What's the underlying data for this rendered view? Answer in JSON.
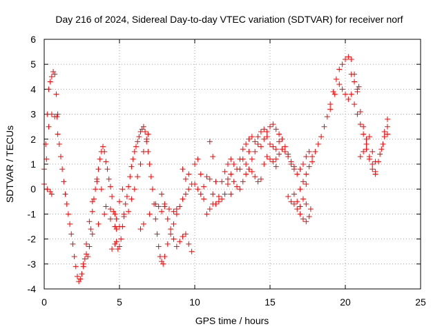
{
  "chart_data": {
    "type": "scatter",
    "title": "Day 216 of 2024, Sidereal Day-to-day VTEC variation (SDTVAR) for receiver norf",
    "xlabel": "GPS time / hours",
    "ylabel": "SDTVAR / TECUs",
    "xlim": [
      0,
      25
    ],
    "ylim": [
      -4,
      6
    ],
    "xticks": [
      "0",
      "5",
      "10",
      "15",
      "20",
      "25"
    ],
    "yticks": [
      "-4",
      "-3",
      "-2",
      "-1",
      "0",
      "1",
      "2",
      "3",
      "4",
      "5",
      "6"
    ],
    "grid": true,
    "marker": "plus",
    "color": "#ff0000",
    "series": [
      {
        "name": "SDTVAR",
        "points": [
          [
            0.0,
            0.2
          ],
          [
            0.1,
            1.8
          ],
          [
            0.2,
            3.0
          ],
          [
            0.3,
            4.0
          ],
          [
            0.4,
            4.3
          ],
          [
            0.5,
            4.5
          ],
          [
            0.6,
            4.7
          ],
          [
            0.7,
            4.6
          ],
          [
            0.8,
            3.8
          ],
          [
            0.85,
            2.9
          ],
          [
            0.9,
            2.2
          ],
          [
            1.0,
            1.8
          ],
          [
            1.1,
            1.3
          ],
          [
            1.2,
            0.8
          ],
          [
            1.3,
            0.3
          ],
          [
            1.4,
            -0.2
          ],
          [
            1.5,
            -0.6
          ],
          [
            1.6,
            -1.0
          ],
          [
            1.7,
            -1.4
          ],
          [
            1.8,
            -1.8
          ],
          [
            1.9,
            -2.2
          ],
          [
            2.0,
            -2.7
          ],
          [
            2.1,
            -3.1
          ],
          [
            2.2,
            -3.5
          ],
          [
            2.3,
            -3.7
          ],
          [
            2.4,
            -3.6
          ],
          [
            2.5,
            -3.4
          ],
          [
            2.6,
            -3.1
          ],
          [
            2.7,
            -2.8
          ],
          [
            2.8,
            -2.6
          ],
          [
            2.9,
            -2.7
          ],
          [
            3.0,
            -2.3
          ],
          [
            3.1,
            -1.6
          ],
          [
            3.2,
            -0.9
          ],
          [
            3.3,
            -0.4
          ],
          [
            3.4,
            0.0
          ],
          [
            3.5,
            0.3
          ],
          [
            3.6,
            0.8
          ],
          [
            3.7,
            1.2
          ],
          [
            3.8,
            1.5
          ],
          [
            3.9,
            1.7
          ],
          [
            4.0,
            1.5
          ],
          [
            4.1,
            1.1
          ],
          [
            4.2,
            0.8
          ],
          [
            4.3,
            0.4
          ],
          [
            4.4,
            0.1
          ],
          [
            4.5,
            -0.3
          ],
          [
            4.6,
            -0.9
          ],
          [
            4.7,
            -1.5
          ],
          [
            4.8,
            -2.1
          ],
          [
            4.9,
            -2.4
          ],
          [
            5.0,
            -2.3
          ],
          [
            5.1,
            -2.0
          ],
          [
            5.2,
            -1.5
          ],
          [
            5.3,
            -1.0
          ],
          [
            5.4,
            -0.6
          ],
          [
            5.5,
            -0.3
          ],
          [
            5.6,
            0.1
          ],
          [
            5.7,
            0.5
          ],
          [
            5.8,
            0.9
          ],
          [
            5.9,
            1.2
          ],
          [
            6.0,
            1.5
          ],
          [
            6.1,
            1.7
          ],
          [
            6.2,
            1.9
          ],
          [
            6.3,
            2.1
          ],
          [
            6.4,
            2.3
          ],
          [
            6.5,
            2.4
          ],
          [
            6.6,
            2.5
          ],
          [
            6.7,
            2.3
          ],
          [
            6.8,
            1.9
          ],
          [
            6.9,
            1.5
          ],
          [
            7.0,
            1.0
          ],
          [
            7.1,
            0.5
          ],
          [
            7.2,
            0.0
          ],
          [
            7.3,
            -0.6
          ],
          [
            7.4,
            -1.2
          ],
          [
            7.5,
            -1.8
          ],
          [
            7.6,
            -2.3
          ],
          [
            7.7,
            -2.7
          ],
          [
            7.8,
            -2.9
          ],
          [
            7.9,
            -3.0
          ],
          [
            8.0,
            -2.7
          ],
          [
            8.2,
            -2.2
          ],
          [
            8.4,
            -1.8
          ],
          [
            8.6,
            -1.4
          ],
          [
            8.8,
            -1.0
          ],
          [
            9.0,
            -0.7
          ],
          [
            9.2,
            -0.4
          ],
          [
            9.4,
            -0.2
          ],
          [
            9.6,
            0.0
          ],
          [
            9.8,
            0.2
          ],
          [
            10.0,
            0.2
          ],
          [
            10.2,
            0.0
          ],
          [
            10.4,
            -0.2
          ],
          [
            10.6,
            0.1
          ],
          [
            10.8,
            0.5
          ],
          [
            11.0,
            0.4
          ],
          [
            11.2,
            -0.2
          ],
          [
            11.4,
            -0.6
          ],
          [
            11.6,
            -0.3
          ],
          [
            11.8,
            0.3
          ],
          [
            12.0,
            0.7
          ],
          [
            12.2,
            1.0
          ],
          [
            12.4,
            1.2
          ],
          [
            12.6,
            1.0
          ],
          [
            12.8,
            0.8
          ],
          [
            13.0,
            1.2
          ],
          [
            13.2,
            1.6
          ],
          [
            13.4,
            1.8
          ],
          [
            13.6,
            2.0
          ],
          [
            13.8,
            2.1
          ],
          [
            14.0,
            1.9
          ],
          [
            14.2,
            2.1
          ],
          [
            14.4,
            2.3
          ],
          [
            14.6,
            2.4
          ],
          [
            14.8,
            2.3
          ],
          [
            15.0,
            2.5
          ],
          [
            15.2,
            2.6
          ],
          [
            15.4,
            2.4
          ],
          [
            15.6,
            2.2
          ],
          [
            15.8,
            2.0
          ],
          [
            16.0,
            1.7
          ],
          [
            16.2,
            1.4
          ],
          [
            16.4,
            1.1
          ],
          [
            16.6,
            0.8
          ],
          [
            16.8,
            0.6
          ],
          [
            17.0,
            0.8
          ],
          [
            17.2,
            1.0
          ],
          [
            17.4,
            1.3
          ],
          [
            17.6,
            1.5
          ],
          [
            17.8,
            1.3
          ],
          [
            18.0,
            1.5
          ],
          [
            18.2,
            1.8
          ],
          [
            18.4,
            2.1
          ],
          [
            18.6,
            2.5
          ],
          [
            18.8,
            2.9
          ],
          [
            19.0,
            3.4
          ],
          [
            19.2,
            3.9
          ],
          [
            19.4,
            4.4
          ],
          [
            19.6,
            4.8
          ],
          [
            19.8,
            5.0
          ],
          [
            20.0,
            5.2
          ],
          [
            20.2,
            5.3
          ],
          [
            20.4,
            5.2
          ],
          [
            20.6,
            4.6
          ],
          [
            20.8,
            3.9
          ],
          [
            21.0,
            3.1
          ],
          [
            21.2,
            2.5
          ],
          [
            21.4,
            1.8
          ],
          [
            21.6,
            1.3
          ],
          [
            21.8,
            1.0
          ],
          [
            22.0,
            0.7
          ],
          [
            22.2,
            1.1
          ],
          [
            22.4,
            1.6
          ],
          [
            22.6,
            2.1
          ],
          [
            22.8,
            2.5
          ],
          [
            0.0,
            0.8
          ],
          [
            0.15,
            1.2
          ],
          [
            0.3,
            2.5
          ],
          [
            0.5,
            3.0
          ],
          [
            0.7,
            2.9
          ],
          [
            0.9,
            3.0
          ],
          [
            0.2,
            0.0
          ],
          [
            0.4,
            -0.1
          ],
          [
            0.5,
            -0.2
          ],
          [
            2.6,
            -3.0
          ],
          [
            2.8,
            -2.2
          ],
          [
            3.0,
            -1.3
          ],
          [
            3.2,
            -0.5
          ],
          [
            3.5,
            0.4
          ],
          [
            3.8,
            0.0
          ],
          [
            4.1,
            -0.7
          ],
          [
            4.4,
            -1.2
          ],
          [
            4.7,
            -1.0
          ],
          [
            3.2,
            -1.8
          ],
          [
            3.6,
            -1.4
          ],
          [
            4.0,
            -1.0
          ],
          [
            4.4,
            -0.8
          ],
          [
            4.8,
            -1.2
          ],
          [
            5.0,
            -1.5
          ],
          [
            5.3,
            -1.1
          ],
          [
            5.6,
            -0.9
          ],
          [
            5.8,
            -0.4
          ],
          [
            6.0,
            0.0
          ],
          [
            6.2,
            0.5
          ],
          [
            6.4,
            1.0
          ],
          [
            6.6,
            1.5
          ],
          [
            6.8,
            2.0
          ],
          [
            6.9,
            2.2
          ],
          [
            4.5,
            -2.4
          ],
          [
            4.7,
            -2.2
          ],
          [
            4.8,
            -1.6
          ],
          [
            5.0,
            -0.5
          ],
          [
            5.2,
            0.0
          ],
          [
            6.4,
            -1.6
          ],
          [
            6.6,
            -1.4
          ],
          [
            7.0,
            -1.0
          ],
          [
            7.4,
            -0.6
          ],
          [
            7.8,
            -0.2
          ],
          [
            8.0,
            -0.6
          ],
          [
            8.2,
            -1.2
          ],
          [
            8.4,
            -1.6
          ],
          [
            8.6,
            -2.0
          ],
          [
            8.8,
            -2.3
          ],
          [
            9.0,
            -2.1
          ],
          [
            9.2,
            -1.9
          ],
          [
            9.4,
            -1.8
          ],
          [
            9.6,
            -2.2
          ],
          [
            9.8,
            -2.5
          ],
          [
            7.6,
            -0.7
          ],
          [
            7.8,
            -0.9
          ],
          [
            8.0,
            -0.7
          ],
          [
            8.3,
            -0.8
          ],
          [
            8.6,
            -0.9
          ],
          [
            8.8,
            -0.8
          ],
          [
            9.2,
            0.8
          ],
          [
            9.4,
            0.4
          ],
          [
            9.6,
            0.6
          ],
          [
            10.0,
            1.0
          ],
          [
            10.2,
            1.2
          ],
          [
            10.4,
            0.6
          ],
          [
            10.6,
            -0.4
          ],
          [
            10.8,
            -1.0
          ],
          [
            11.0,
            -0.8
          ],
          [
            11.2,
            -0.6
          ],
          [
            11.0,
            1.9
          ],
          [
            11.2,
            1.3
          ],
          [
            11.4,
            0.3
          ],
          [
            11.6,
            -0.5
          ],
          [
            11.8,
            -0.4
          ],
          [
            12.0,
            -0.2
          ],
          [
            12.2,
            0.2
          ],
          [
            12.4,
            0.6
          ],
          [
            12.2,
            0.4
          ],
          [
            12.4,
            -0.2
          ],
          [
            12.6,
            0.3
          ],
          [
            12.8,
            0.1
          ],
          [
            13.0,
            0.0
          ],
          [
            13.2,
            0.3
          ],
          [
            13.4,
            0.6
          ],
          [
            13.6,
            0.8
          ],
          [
            13.8,
            0.7
          ],
          [
            13.0,
            0.8
          ],
          [
            13.2,
            1.2
          ],
          [
            13.4,
            1.0
          ],
          [
            13.6,
            1.5
          ],
          [
            13.8,
            1.2
          ],
          [
            14.0,
            0.5
          ],
          [
            14.2,
            0.3
          ],
          [
            14.4,
            0.4
          ],
          [
            14.0,
            1.5
          ],
          [
            14.2,
            1.8
          ],
          [
            14.4,
            1.7
          ],
          [
            14.6,
            2.0
          ],
          [
            14.8,
            2.1
          ],
          [
            15.0,
            1.8
          ],
          [
            15.2,
            1.7
          ],
          [
            15.4,
            1.6
          ],
          [
            15.6,
            1.9
          ],
          [
            15.4,
            1.2
          ],
          [
            15.6,
            1.4
          ],
          [
            15.8,
            1.6
          ],
          [
            16.0,
            1.5
          ],
          [
            16.2,
            1.3
          ],
          [
            16.4,
            1.0
          ],
          [
            16.6,
            0.9
          ],
          [
            14.6,
            1.0
          ],
          [
            14.8,
            1.3
          ],
          [
            15.0,
            1.2
          ],
          [
            15.2,
            1.1
          ],
          [
            15.4,
            0.9
          ],
          [
            16.2,
            -0.3
          ],
          [
            16.4,
            -0.5
          ],
          [
            16.6,
            -0.6
          ],
          [
            16.8,
            -0.8
          ],
          [
            17.0,
            -1.0
          ],
          [
            17.2,
            -1.2
          ],
          [
            17.4,
            -1.3
          ],
          [
            17.6,
            -1.1
          ],
          [
            17.7,
            -0.8
          ],
          [
            17.4,
            -0.6
          ],
          [
            17.2,
            -0.4
          ],
          [
            17.0,
            -0.7
          ],
          [
            16.8,
            -0.5
          ],
          [
            16.6,
            -0.2
          ],
          [
            17.0,
            0.0
          ],
          [
            17.2,
            0.3
          ],
          [
            17.4,
            0.6
          ],
          [
            17.6,
            0.9
          ],
          [
            17.8,
            1.1
          ],
          [
            17.4,
            0.2
          ],
          [
            19.0,
            3.2
          ],
          [
            19.3,
            3.8
          ],
          [
            19.6,
            4.2
          ],
          [
            19.8,
            4.0
          ],
          [
            20.0,
            3.8
          ],
          [
            20.2,
            3.6
          ],
          [
            20.4,
            3.8
          ],
          [
            20.6,
            3.4
          ],
          [
            20.8,
            3.0
          ],
          [
            21.0,
            2.6
          ],
          [
            21.2,
            2.2
          ],
          [
            21.4,
            1.6
          ],
          [
            21.6,
            1.2
          ],
          [
            21.8,
            0.8
          ],
          [
            22.0,
            0.6
          ],
          [
            21.0,
            1.3
          ],
          [
            21.2,
            1.5
          ],
          [
            21.4,
            2.0
          ],
          [
            21.6,
            2.1
          ],
          [
            21.8,
            1.5
          ],
          [
            22.0,
            1.1
          ],
          [
            22.3,
            1.4
          ],
          [
            22.5,
            1.8
          ],
          [
            22.6,
            2.3
          ],
          [
            22.8,
            2.8
          ],
          [
            22.8,
            2.2
          ],
          [
            20.4,
            4.6
          ],
          [
            20.6,
            4.3
          ],
          [
            20.8,
            4.0
          ],
          [
            20.9,
            4.1
          ]
        ]
      }
    ]
  }
}
